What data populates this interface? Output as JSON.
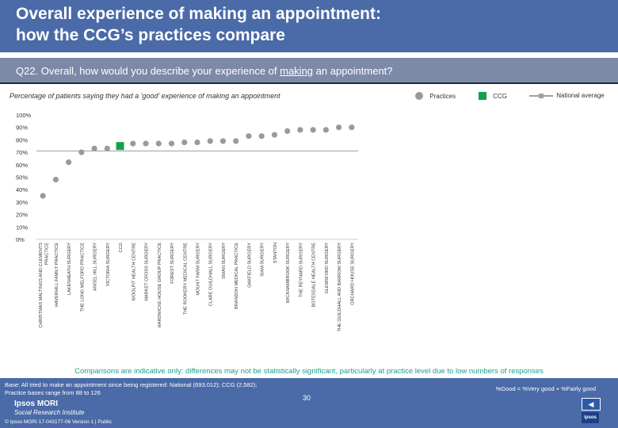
{
  "header": {
    "title_line1": "Overall experience of making an appointment:",
    "title_line2": "how the CCG’s practices compare"
  },
  "question": {
    "prefix": "Q22. Overall, how would you describe your experience of ",
    "underlined": "making",
    "suffix": " an appointment?"
  },
  "legend": {
    "practices": "Practices",
    "ccg": "CCG",
    "national": "National average"
  },
  "colors": {
    "header_bg": "#4a6aa8",
    "practice": "#9a9a9a",
    "ccg": "#13a04a",
    "national": "#a0a0a0"
  },
  "chart_data": {
    "type": "scatter",
    "title": "Percentage of patients saying they had a 'good' experience of making an appointment",
    "xlabel": "",
    "ylabel": "",
    "ylim": [
      0,
      100
    ],
    "yticks": [
      "0%",
      "10%",
      "20%",
      "30%",
      "40%",
      "50%",
      "60%",
      "70%",
      "80%",
      "90%",
      "100%"
    ],
    "national_average": 71,
    "categories": [
      "CHRISTMAS MALTINGS AND CLEMENTS PRACTICE",
      "HAVERHILL FAMILY PRACTICE",
      "LAKENHEATH SURGERY",
      "THE LONG MELFORD PRACTICE",
      "ANGEL HILL SURGERY",
      "VICTORIA SURGERY",
      "CCG",
      "WOOLPIT HEALTH CENTRE",
      "MARKET CROSS SURGERY",
      "HARDWICKE HOUSE GROUP PRACTICE",
      "FOREST SURGERY",
      "THE ROOKERY MEDICAL CENTRE",
      "MOUNT FARM SURGERY",
      "CLARE GUILDHALL SURGERY",
      "SWAN SURGERY",
      "BRANDON MEDICAL PRACTICE",
      "OAKFIELD SURGERY",
      "SIAM SURGERY",
      "STANTON",
      "WICKHAMBROOK SURGERY",
      "THE REYNARD SURGERY",
      "BOTESDALE HEALTH CENTRE",
      "GLEMSFORD SURGERY",
      "THE GUILDHALL AND BARROW SURGERY",
      "ORCHARD HOUSE SURGERY"
    ],
    "values": [
      35,
      48,
      62,
      70,
      73,
      73,
      75,
      77,
      77,
      77,
      77,
      78,
      78,
      79,
      79,
      79,
      83,
      83,
      84,
      87,
      88,
      88,
      88,
      90,
      90
    ],
    "highlight_index": 6
  },
  "caveat": "Comparisons are indicative only: differences may not be statistically significant, particularly at practice level due to low numbers of responses",
  "footer": {
    "base_line1": "Base: All tried to make an appointment since being registered: National (693,012); CCG (2,582);",
    "base_line2": "Practice bases range from 88 to 126",
    "definition": "%Good = %Very good + %Fairly good",
    "page_number": "30",
    "logo_line1": "Ipsos MORI",
    "logo_line2": "Social Research Institute",
    "copyright": "© Ipsos MORI 17-043177-06 Version 1 | Public",
    "nav_icon": "arrow-icon",
    "brand_mark": "ipsos"
  }
}
